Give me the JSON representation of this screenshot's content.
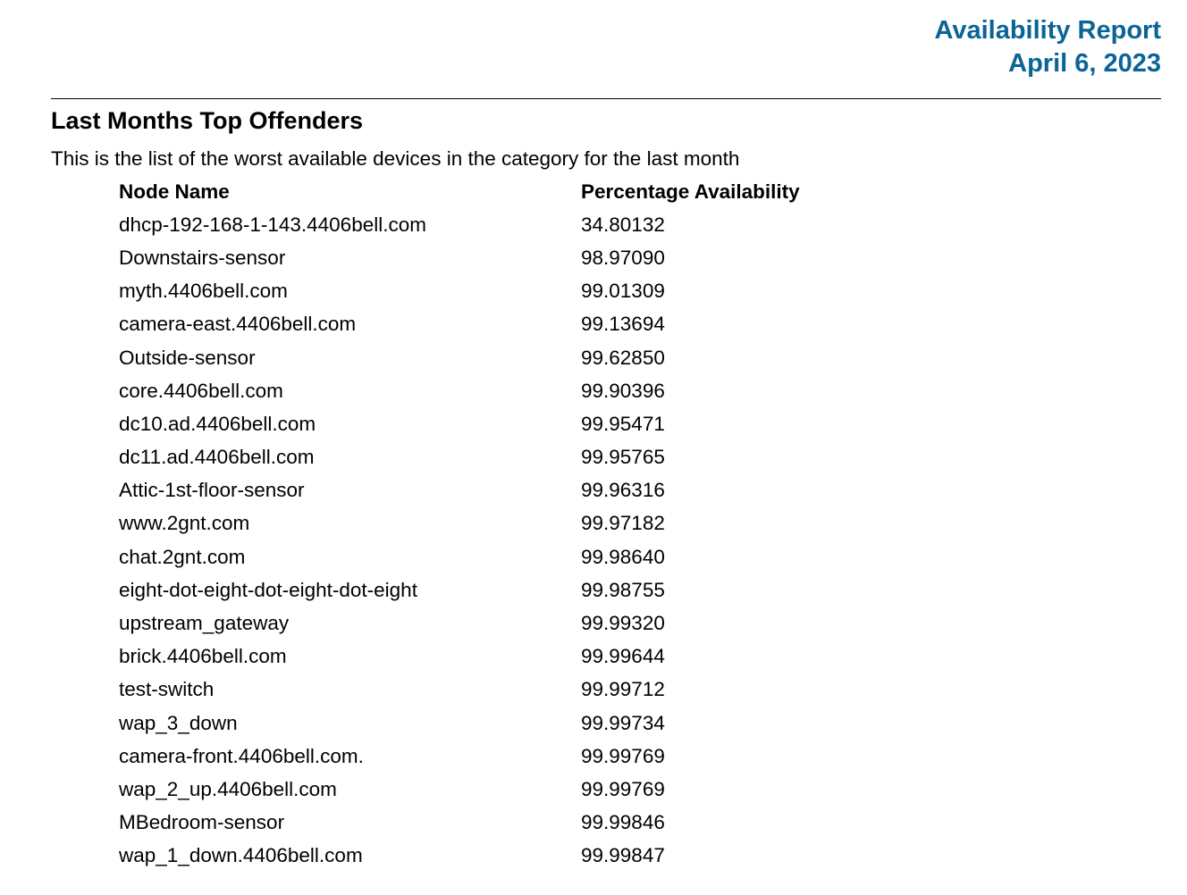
{
  "header": {
    "title": "Availability Report",
    "date": "April 6, 2023",
    "accent_color": "#0a6496"
  },
  "section": {
    "title": "Last Months Top Offenders",
    "description": "This is the list of the worst available devices in the category for the last month"
  },
  "table": {
    "columns": [
      "Node Name",
      "Percentage Availability"
    ],
    "rows": [
      [
        "dhcp-192-168-1-143.4406bell.com",
        "34.80132"
      ],
      [
        "Downstairs-sensor",
        "98.97090"
      ],
      [
        "myth.4406bell.com",
        "99.01309"
      ],
      [
        "camera-east.4406bell.com",
        "99.13694"
      ],
      [
        "Outside-sensor",
        "99.62850"
      ],
      [
        "core.4406bell.com",
        "99.90396"
      ],
      [
        "dc10.ad.4406bell.com",
        "99.95471"
      ],
      [
        "dc11.ad.4406bell.com",
        "99.95765"
      ],
      [
        "Attic-1st-floor-sensor",
        "99.96316"
      ],
      [
        "www.2gnt.com",
        "99.97182"
      ],
      [
        "chat.2gnt.com",
        "99.98640"
      ],
      [
        "eight-dot-eight-dot-eight-dot-eight",
        "99.98755"
      ],
      [
        "upstream_gateway",
        "99.99320"
      ],
      [
        "brick.4406bell.com",
        "99.99644"
      ],
      [
        "test-switch",
        "99.99712"
      ],
      [
        "wap_3_down",
        "99.99734"
      ],
      [
        "camera-front.4406bell.com.",
        "99.99769"
      ],
      [
        "wap_2_up.4406bell.com",
        "99.99769"
      ],
      [
        "MBedroom-sensor",
        "99.99846"
      ],
      [
        "wap_1_down.4406bell.com",
        "99.99847"
      ]
    ]
  }
}
